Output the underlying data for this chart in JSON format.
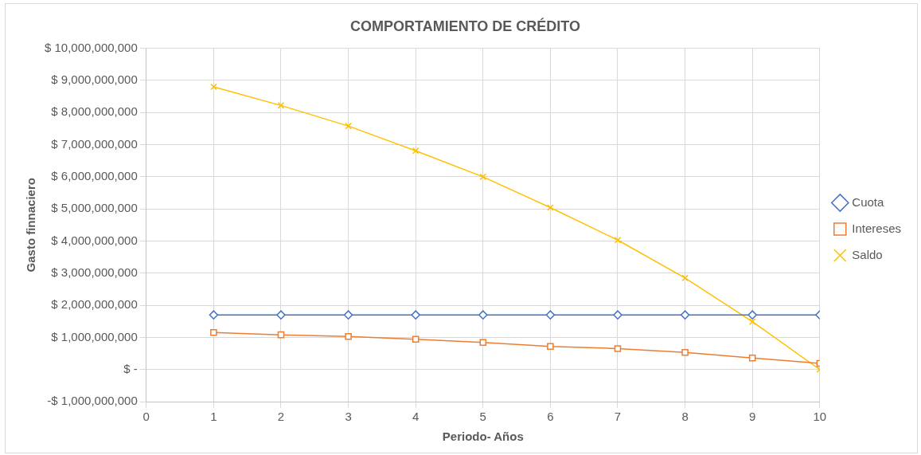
{
  "chart_data": {
    "type": "line",
    "title": "COMPORTAMIENTO DE CRÉDITO",
    "xlabel": "Periodo- Años",
    "ylabel": "Gasto finnaciero",
    "x": [
      1,
      2,
      3,
      4,
      5,
      6,
      7,
      8,
      9,
      10
    ],
    "series": [
      {
        "name": "Cuota",
        "color": "#4472c4",
        "marker": "diamond",
        "values": [
          1700000000,
          1700000000,
          1700000000,
          1700000000,
          1700000000,
          1700000000,
          1700000000,
          1700000000,
          1700000000,
          1700000000
        ]
      },
      {
        "name": "Intereses",
        "color": "#ed7d31",
        "marker": "square",
        "values": [
          1150000000,
          1080000000,
          1030000000,
          940000000,
          840000000,
          720000000,
          650000000,
          530000000,
          360000000,
          190000000
        ]
      },
      {
        "name": "Saldo",
        "color": "#ffc000",
        "marker": "cross",
        "values": [
          8800000000,
          8220000000,
          7580000000,
          6810000000,
          6000000000,
          5040000000,
          4030000000,
          2850000000,
          1490000000,
          0
        ]
      }
    ],
    "xlim": [
      0,
      10
    ],
    "xticks": [
      0,
      1,
      2,
      3,
      4,
      5,
      6,
      7,
      8,
      9,
      10
    ],
    "ylim": [
      -1000000000,
      10000000000
    ],
    "yticks": [
      {
        "value": -1000000000,
        "label": "-$ 1,000,000,000"
      },
      {
        "value": 0,
        "label": "$ -"
      },
      {
        "value": 1000000000,
        "label": "$ 1,000,000,000"
      },
      {
        "value": 2000000000,
        "label": "$ 2,000,000,000"
      },
      {
        "value": 3000000000,
        "label": "$ 3,000,000,000"
      },
      {
        "value": 4000000000,
        "label": "$ 4,000,000,000"
      },
      {
        "value": 5000000000,
        "label": "$ 5,000,000,000"
      },
      {
        "value": 6000000000,
        "label": "$ 6,000,000,000"
      },
      {
        "value": 7000000000,
        "label": "$ 7,000,000,000"
      },
      {
        "value": 8000000000,
        "label": "$ 8,000,000,000"
      },
      {
        "value": 9000000000,
        "label": "$ 9,000,000,000"
      },
      {
        "value": 10000000000,
        "label": "$ 10,000,000,000"
      }
    ],
    "grid": true,
    "legend": "right",
    "line_style": "solid"
  }
}
